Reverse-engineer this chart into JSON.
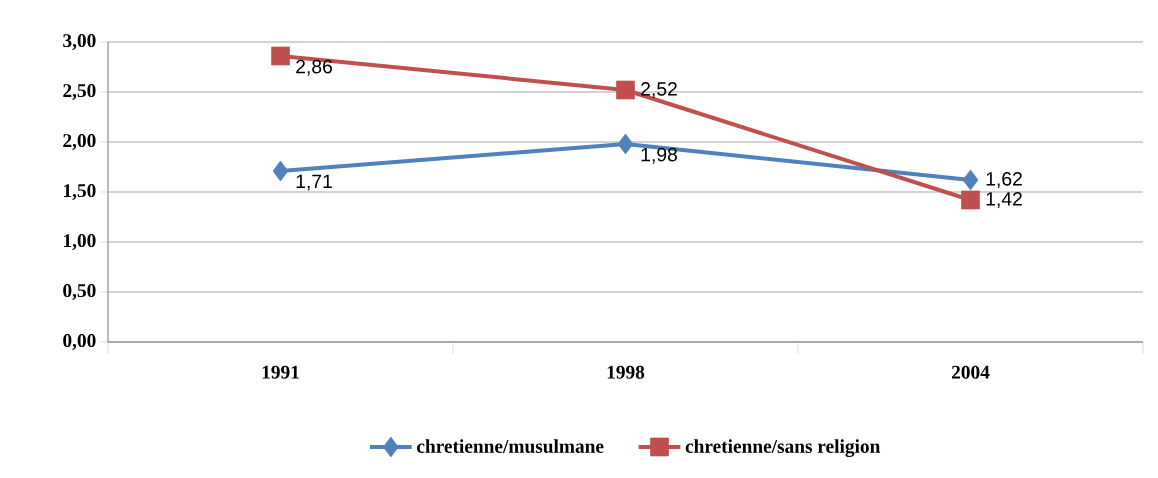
{
  "chart_data": {
    "type": "line",
    "categories": [
      "1991",
      "1998",
      "2004"
    ],
    "series": [
      {
        "name": "chretienne/musulmane",
        "color": "#4f81bd",
        "marker": "diamond",
        "values": [
          1.71,
          1.98,
          1.62
        ],
        "value_labels": [
          "1,71",
          "1,98",
          "1,62"
        ]
      },
      {
        "name": "chretienne/sans religion",
        "color": "#c0504d",
        "marker": "square",
        "values": [
          2.86,
          2.52,
          1.42
        ],
        "value_labels": [
          "2,86",
          "2,52",
          "1,42"
        ]
      }
    ],
    "ylim": [
      0,
      3
    ],
    "yticks": [
      {
        "value": 0,
        "label": "0,00"
      },
      {
        "value": 0.5,
        "label": "0,50"
      },
      {
        "value": 1,
        "label": "1,00"
      },
      {
        "value": 1.5,
        "label": "1,50"
      },
      {
        "value": 2,
        "label": "2,00"
      },
      {
        "value": 2.5,
        "label": "2,50"
      },
      {
        "value": 3,
        "label": "3,00"
      }
    ],
    "grid": "y",
    "legend": "bottom"
  }
}
